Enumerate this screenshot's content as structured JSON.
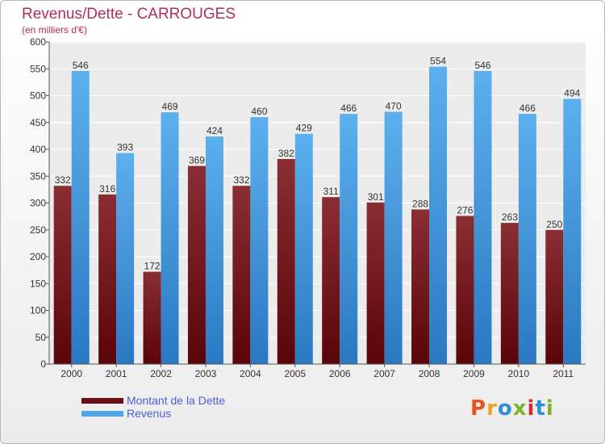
{
  "header": {
    "title": "Revenus/Dette - CARROUGES",
    "subtitle": "(en milliers d'€)"
  },
  "logo": {
    "text": "Proxiti",
    "colors": [
      "#e8541b",
      "#f0a41e",
      "#2a8fd6",
      "#7bb42a",
      "#d9262f",
      "#2a8fd6",
      "#7bb42a"
    ]
  },
  "chart_data": {
    "type": "bar",
    "title": "Revenus/Dette - CARROUGES",
    "subtitle": "(en milliers d'€)",
    "categories": [
      "2000",
      "2001",
      "2002",
      "2003",
      "2004",
      "2005",
      "2006",
      "2007",
      "2008",
      "2009",
      "2010",
      "2011"
    ],
    "series": [
      {
        "name": "Montant de la Dette",
        "color": "#7a1e22",
        "values": [
          332,
          316,
          172,
          369,
          332,
          382,
          311,
          301,
          288,
          276,
          263,
          250
        ]
      },
      {
        "name": "Revenus",
        "color": "#4fa6e6",
        "values": [
          546,
          393,
          469,
          424,
          460,
          429,
          466,
          470,
          554,
          546,
          466,
          494
        ]
      }
    ],
    "ylim": [
      0,
      600
    ],
    "yticks": [
      0,
      50,
      100,
      150,
      200,
      250,
      300,
      350,
      400,
      450,
      500,
      550,
      600
    ],
    "grid": true,
    "legend": "bottom-left"
  }
}
